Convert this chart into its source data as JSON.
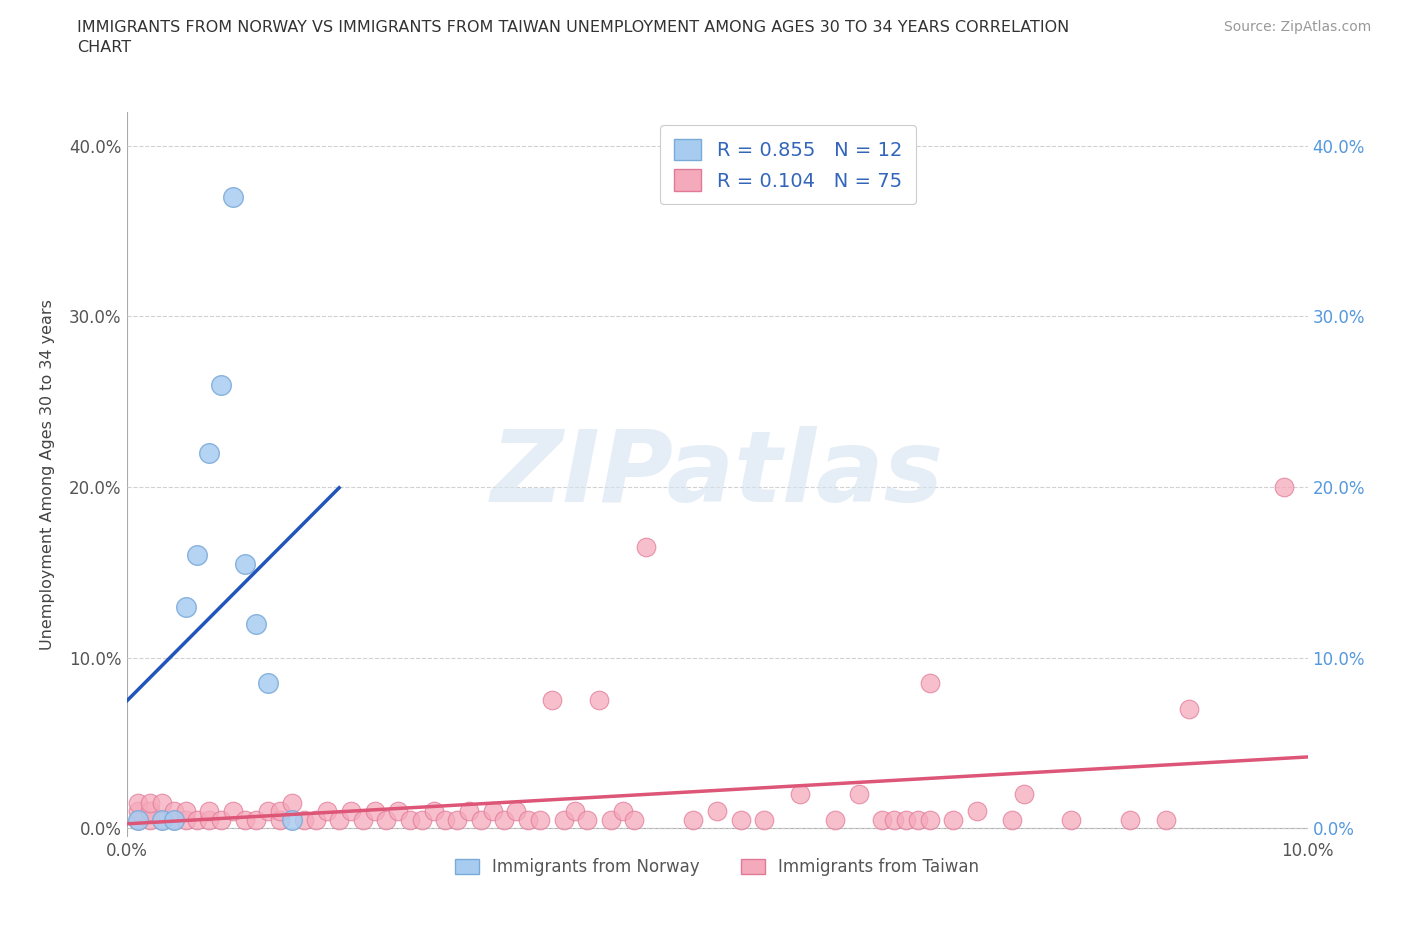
{
  "title_line1": "IMMIGRANTS FROM NORWAY VS IMMIGRANTS FROM TAIWAN UNEMPLOYMENT AMONG AGES 30 TO 34 YEARS CORRELATION",
  "title_line2": "CHART",
  "source": "Source: ZipAtlas.com",
  "ylabel_label": "Unemployment Among Ages 30 to 34 years",
  "xlim": [
    0.0,
    0.1
  ],
  "ylim": [
    -0.005,
    0.42
  ],
  "xtick_positions": [
    0.0,
    0.1
  ],
  "xtick_labels": [
    "0.0%",
    "10.0%"
  ],
  "ytick_positions": [
    0.0,
    0.1,
    0.2,
    0.3,
    0.4
  ],
  "ytick_labels": [
    "0.0%",
    "10.0%",
    "20.0%",
    "30.0%",
    "40.0%"
  ],
  "norway_color": "#A8CCF0",
  "norway_edge": "#7AAAD8",
  "taiwan_color": "#F5AABB",
  "taiwan_edge": "#E07898",
  "trend_norway_color": "#2255BB",
  "trend_taiwan_color": "#DD5577",
  "legend_norway_r": "0.855",
  "legend_norway_n": "12",
  "legend_taiwan_r": "0.104",
  "legend_taiwan_n": "75",
  "watermark": "ZIPatlas",
  "legend_r_n_color": "#3366BB",
  "norway_x": [
    0.001,
    0.003,
    0.004,
    0.005,
    0.006,
    0.007,
    0.008,
    0.009,
    0.01,
    0.011,
    0.012,
    0.014
  ],
  "norway_y": [
    0.005,
    0.005,
    0.005,
    0.13,
    0.16,
    0.22,
    0.26,
    0.37,
    0.155,
    0.12,
    0.085,
    0.005
  ],
  "taiwan_x": [
    0.001,
    0.001,
    0.001,
    0.002,
    0.002,
    0.002,
    0.003,
    0.003,
    0.004,
    0.004,
    0.005,
    0.005,
    0.006,
    0.007,
    0.007,
    0.008,
    0.009,
    0.01,
    0.011,
    0.012,
    0.013,
    0.013,
    0.014,
    0.015,
    0.016,
    0.017,
    0.018,
    0.019,
    0.02,
    0.021,
    0.022,
    0.023,
    0.024,
    0.025,
    0.026,
    0.027,
    0.028,
    0.029,
    0.03,
    0.031,
    0.032,
    0.033,
    0.034,
    0.035,
    0.036,
    0.037,
    0.038,
    0.039,
    0.04,
    0.041,
    0.042,
    0.043,
    0.044,
    0.048,
    0.05,
    0.052,
    0.054,
    0.057,
    0.06,
    0.062,
    0.064,
    0.065,
    0.066,
    0.067,
    0.068,
    0.068,
    0.07,
    0.072,
    0.075,
    0.076,
    0.08,
    0.085,
    0.088,
    0.09,
    0.098
  ],
  "taiwan_y": [
    0.005,
    0.01,
    0.015,
    0.005,
    0.01,
    0.015,
    0.005,
    0.015,
    0.005,
    0.01,
    0.005,
    0.01,
    0.005,
    0.005,
    0.01,
    0.005,
    0.01,
    0.005,
    0.005,
    0.01,
    0.005,
    0.01,
    0.015,
    0.005,
    0.005,
    0.01,
    0.005,
    0.01,
    0.005,
    0.01,
    0.005,
    0.01,
    0.005,
    0.005,
    0.01,
    0.005,
    0.005,
    0.01,
    0.005,
    0.01,
    0.005,
    0.01,
    0.005,
    0.005,
    0.075,
    0.005,
    0.01,
    0.005,
    0.075,
    0.005,
    0.01,
    0.005,
    0.165,
    0.005,
    0.01,
    0.005,
    0.005,
    0.02,
    0.005,
    0.02,
    0.005,
    0.005,
    0.005,
    0.005,
    0.085,
    0.005,
    0.005,
    0.01,
    0.005,
    0.02,
    0.005,
    0.005,
    0.005,
    0.07,
    0.2
  ],
  "grid_color": "#CCCCCC",
  "grid_style": "--",
  "right_axis_color": "#5599DD",
  "left_tick_color": "#555555"
}
